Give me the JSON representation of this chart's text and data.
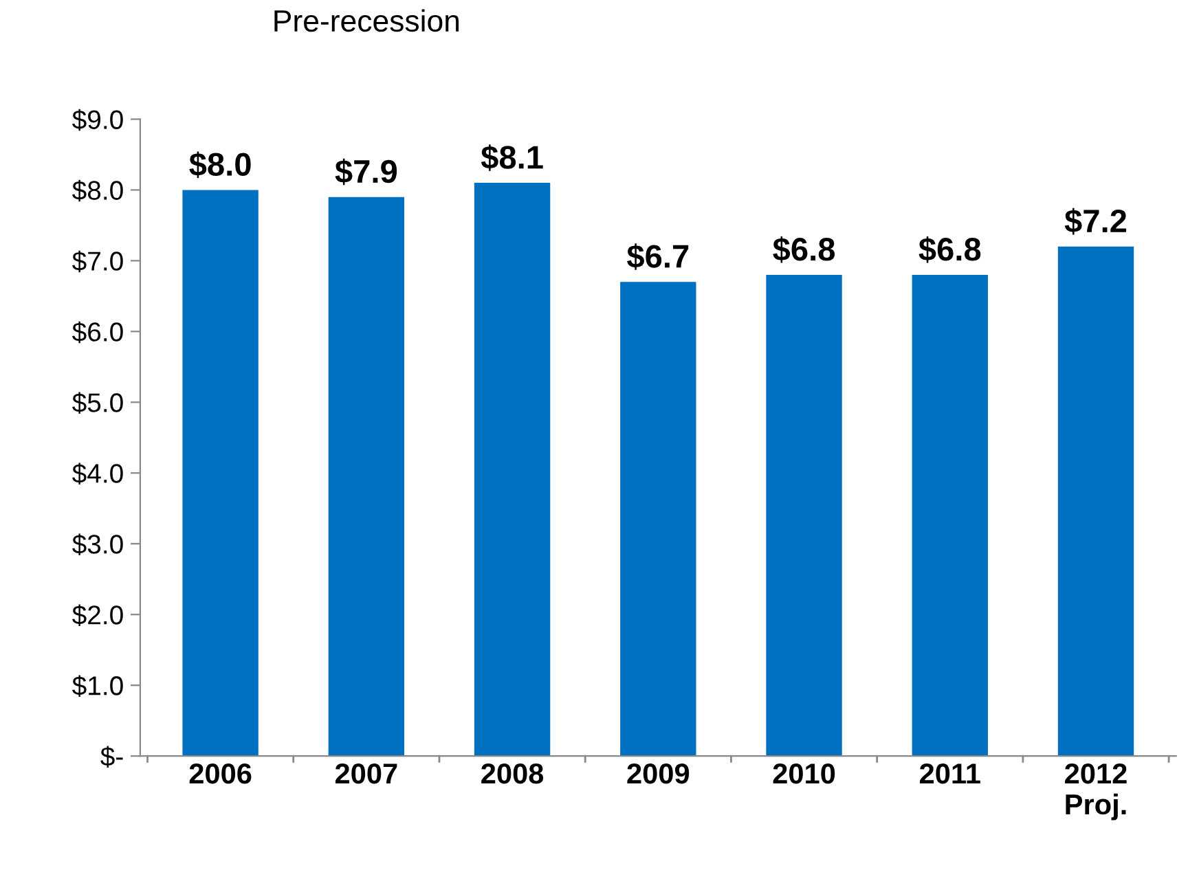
{
  "chart_data": {
    "type": "bar",
    "categories": [
      "2006",
      "2007",
      "2008",
      "2009",
      "2010",
      "2011",
      "2012\nProj."
    ],
    "values": [
      8.0,
      7.9,
      8.1,
      6.7,
      6.8,
      6.8,
      7.2
    ],
    "value_labels": [
      "$8.0",
      "$7.9",
      "$8.1",
      "$6.7",
      "$6.8",
      "$6.8",
      "$7.2"
    ],
    "color": "#0070c0",
    "ylim": [
      0,
      9
    ],
    "yticks": [
      {
        "value": 0,
        "label": "$-"
      },
      {
        "value": 1,
        "label": "$1.0"
      },
      {
        "value": 2,
        "label": "$2.0"
      },
      {
        "value": 3,
        "label": "$3.0"
      },
      {
        "value": 4,
        "label": "$4.0"
      },
      {
        "value": 5,
        "label": "$5.0"
      },
      {
        "value": 6,
        "label": "$6.0"
      },
      {
        "value": 7,
        "label": "$7.0"
      },
      {
        "value": 8,
        "label": "$8.0"
      },
      {
        "value": 9,
        "label": "$9.0"
      }
    ],
    "grid": false,
    "legend": false,
    "annotations": [
      "Pre-recession"
    ]
  }
}
